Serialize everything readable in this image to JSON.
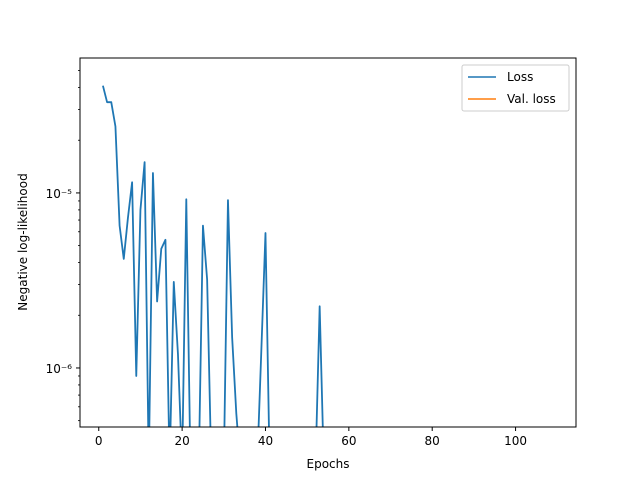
{
  "chart_data": {
    "type": "line",
    "title": "",
    "xlabel": "Epochs",
    "ylabel": "Negative log-likelihood",
    "xlim": [
      -4.5,
      114.5
    ],
    "ylim": [
      4.6e-07,
      5.9e-05
    ],
    "yscale": "log",
    "grid": false,
    "legend_position": "top-right",
    "x_ticks": [
      0,
      20,
      40,
      60,
      80,
      100
    ],
    "x_tick_labels": [
      "0",
      "20",
      "40",
      "60",
      "80",
      "100"
    ],
    "y_ticks": [
      1e-06,
      1e-05
    ],
    "y_tick_labels": [
      "10⁻⁶",
      "10⁻⁵"
    ],
    "series": [
      {
        "name": "Loss",
        "color": "#1f77b4",
        "x": [
          1,
          2,
          3,
          4,
          5,
          6,
          7,
          8,
          9,
          10,
          11,
          12,
          13,
          14,
          15,
          16,
          17,
          18,
          19,
          20,
          21,
          22,
          23,
          24,
          25,
          26,
          27,
          28,
          29,
          30,
          31,
          32,
          33,
          34,
          35,
          36,
          37,
          38,
          39,
          40,
          41,
          42,
          43,
          44,
          45,
          46,
          47,
          48,
          49,
          50,
          51,
          52,
          53,
          54
        ],
        "y": [
          4.1e-05,
          3.3e-05,
          3.3e-05,
          2.4e-05,
          6.5e-06,
          4.2e-06,
          7.2e-06,
          1.15e-05,
          9e-07,
          8e-06,
          1.5e-05,
          null,
          1.3e-05,
          2.4e-06,
          4.8e-06,
          5.4e-06,
          null,
          3.1e-06,
          1.2e-06,
          null,
          9.2e-06,
          null,
          null,
          null,
          6.5e-06,
          3.2e-06,
          null,
          null,
          null,
          null,
          9.1e-06,
          1.5e-06,
          5.5e-07,
          null,
          null,
          null,
          null,
          null,
          1.25e-06,
          5.9e-06,
          null,
          null,
          null,
          null,
          null,
          null,
          null,
          null,
          null,
          null,
          null,
          null,
          2.25e-06,
          null
        ]
      },
      {
        "name": "Val. loss",
        "color": "#ff7f0e",
        "x": [],
        "y": []
      }
    ]
  }
}
